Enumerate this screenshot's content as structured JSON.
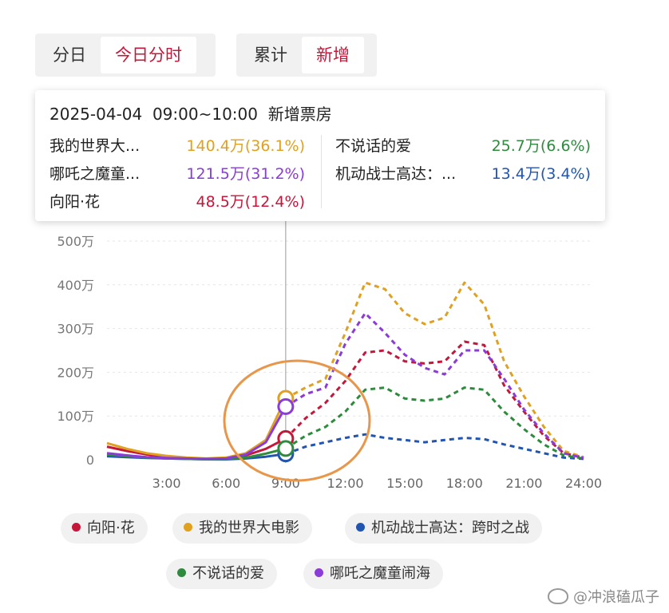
{
  "tabs_left": [
    {
      "label": "分日",
      "active": false
    },
    {
      "label": "今日分时",
      "active": true
    }
  ],
  "tabs_right": [
    {
      "label": "累计",
      "active": false
    },
    {
      "label": "新增",
      "active": true
    }
  ],
  "tooltip": {
    "title": "2025-04-04  09:00~10:00  新增票房",
    "left": [
      {
        "name": "我的世界大...",
        "value": "140.4万(36.1%)",
        "color": "#e0a020"
      },
      {
        "name": "哪吒之魔童...",
        "value": "121.5万(31.2%)",
        "color": "#8a3bd8"
      },
      {
        "name": "向阳·花",
        "value": "48.5万(12.4%)",
        "color": "#c4173a"
      }
    ],
    "right": [
      {
        "name": "不说话的爱",
        "value": "25.7万(6.6%)",
        "color": "#2e8b3e"
      },
      {
        "name": "机动战士高达：...",
        "value": "13.4万(3.4%)",
        "color": "#2255b0"
      }
    ]
  },
  "watermark": "@冲浪磕瓜子",
  "chart_data": {
    "type": "line",
    "x": [
      0,
      1,
      2,
      3,
      4,
      5,
      6,
      7,
      8,
      9,
      10,
      11,
      12,
      13,
      14,
      15,
      16,
      17,
      18,
      19,
      20,
      21,
      22,
      23,
      24
    ],
    "ylim": [
      0,
      500
    ],
    "yticks": [
      0,
      100,
      200,
      300,
      400,
      500
    ],
    "ytick_labels": [
      "0",
      "100万",
      "200万",
      "300万",
      "400万",
      "500万"
    ],
    "xticks": [
      3,
      6,
      9,
      12,
      15,
      18,
      21,
      24
    ],
    "xtick_labels": [
      "3:00",
      "6:00",
      "9:00",
      "12:00",
      "15:00",
      "18:00",
      "21:00",
      "24:00"
    ],
    "current_index": 9,
    "grid": true,
    "legend_placement": "bottom",
    "series": [
      {
        "name": "向阳·花",
        "color": "#c4173a",
        "values": [
          30,
          20,
          12,
          7,
          4,
          2,
          3,
          10,
          25,
          48.5,
          95,
          130,
          180,
          245,
          250,
          225,
          220,
          225,
          270,
          262,
          170,
          110,
          55,
          15,
          5
        ]
      },
      {
        "name": "我的世界大电影",
        "color": "#e0a020",
        "values": [
          38,
          25,
          15,
          9,
          5,
          3,
          5,
          15,
          45,
          140.4,
          165,
          185,
          290,
          405,
          390,
          335,
          310,
          325,
          405,
          355,
          225,
          145,
          75,
          20,
          6
        ]
      },
      {
        "name": "机动战士高达：跨时之战",
        "color": "#2255b0",
        "values": [
          8,
          6,
          4,
          3,
          2,
          1,
          1,
          3,
          7,
          13.4,
          30,
          40,
          50,
          58,
          50,
          45,
          40,
          45,
          50,
          47,
          35,
          25,
          15,
          5,
          2
        ]
      },
      {
        "name": "不说话的爱",
        "color": "#2e8b3e",
        "values": [
          12,
          8,
          5,
          3,
          2,
          1,
          2,
          5,
          14,
          25.7,
          55,
          75,
          110,
          160,
          165,
          140,
          135,
          140,
          165,
          160,
          110,
          70,
          35,
          10,
          3
        ]
      },
      {
        "name": "哪吒之魔童闹海",
        "color": "#8a3bd8",
        "values": [
          15,
          10,
          6,
          4,
          3,
          2,
          3,
          12,
          40,
          121.5,
          150,
          165,
          265,
          335,
          290,
          240,
          210,
          195,
          250,
          250,
          185,
          115,
          60,
          15,
          4
        ]
      }
    ],
    "legend": [
      {
        "name": "向阳·花",
        "color": "#c4173a"
      },
      {
        "name": "我的世界大电影",
        "color": "#e0a020"
      },
      {
        "name": "机动战士高达：跨时之战",
        "color": "#2255b0"
      },
      {
        "name": "不说话的爱",
        "color": "#2e8b3e"
      },
      {
        "name": "哪吒之魔童闹海",
        "color": "#8a3bd8"
      }
    ],
    "annotation": {
      "type": "ellipse",
      "color": "#e8964a"
    }
  }
}
